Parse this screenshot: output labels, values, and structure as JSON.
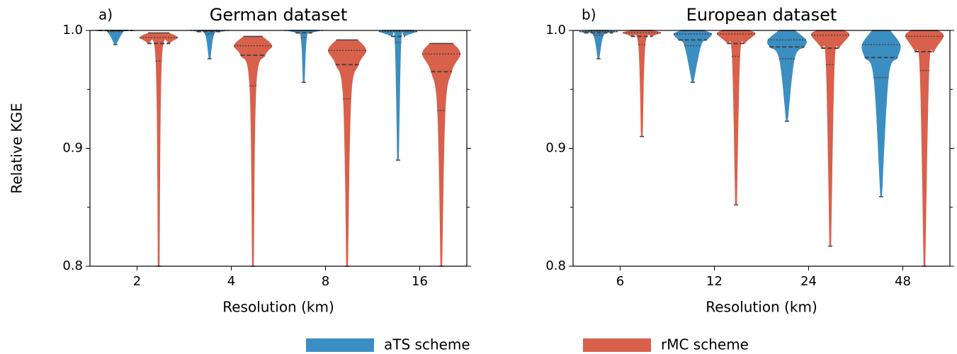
{
  "chart_data": [
    {
      "type": "violin",
      "panel_label": "a)",
      "title": "German dataset",
      "xlabel": "Resolution (km)",
      "ylabel": "Relative KGE",
      "categories": [
        "2",
        "4",
        "8",
        "16"
      ],
      "ylim": [
        0.8,
        1.0
      ],
      "yticks": [
        0.8,
        0.9,
        {
          "value": 1.0,
          "label": "1.0"
        }
      ],
      "yminorticks": [
        0.85,
        0.95
      ],
      "series": [
        {
          "name": "aTS scheme",
          "color": "#3b8ec2",
          "min": [
            0.988,
            0.976,
            0.956,
            0.89
          ],
          "q1": [
            0.999,
            0.997,
            0.994,
            0.99
          ],
          "median": [
            1.0,
            0.999,
            0.998,
            0.995
          ],
          "q3": [
            1.0,
            1.0,
            1.0,
            0.999
          ],
          "max": [
            1.0,
            1.0,
            1.0,
            1.0
          ]
        },
        {
          "name": "rMC scheme",
          "color": "#d9604b",
          "min": [
            0.8,
            0.8,
            0.8,
            0.8
          ],
          "q1": [
            0.974,
            0.953,
            0.942,
            0.932
          ],
          "median": [
            0.989,
            0.979,
            0.971,
            0.965
          ],
          "q3": [
            0.994,
            0.987,
            0.983,
            0.98
          ],
          "max": [
            0.998,
            0.995,
            0.992,
            0.989
          ]
        }
      ]
    },
    {
      "type": "violin",
      "panel_label": "b)",
      "title": "European dataset",
      "xlabel": "Resolution (km)",
      "categories": [
        "6",
        "12",
        "24",
        "48"
      ],
      "ylim": [
        0.8,
        1.0
      ],
      "yticks": [
        0.8,
        0.9,
        {
          "value": 1.0,
          "label": "1.0"
        }
      ],
      "yminorticks": [
        0.85,
        0.95
      ],
      "series": [
        {
          "name": "aTS scheme",
          "color": "#3b8ec2",
          "min": [
            0.976,
            0.956,
            0.923,
            0.859
          ],
          "q1": [
            0.996,
            0.987,
            0.976,
            0.96
          ],
          "median": [
            0.998,
            0.992,
            0.986,
            0.977
          ],
          "q3": [
            0.999,
            0.997,
            0.992,
            0.988
          ],
          "max": [
            1.0,
            1.0,
            1.0,
            1.0
          ]
        },
        {
          "name": "rMC scheme",
          "color": "#d9604b",
          "min": [
            0.91,
            0.852,
            0.817,
            0.8
          ],
          "q1": [
            0.988,
            0.978,
            0.971,
            0.966
          ],
          "median": [
            0.995,
            0.989,
            0.985,
            0.982
          ],
          "q3": [
            0.998,
            0.997,
            0.996,
            0.995
          ],
          "max": [
            1.0,
            1.0,
            1.0,
            1.0
          ]
        }
      ]
    }
  ]
}
